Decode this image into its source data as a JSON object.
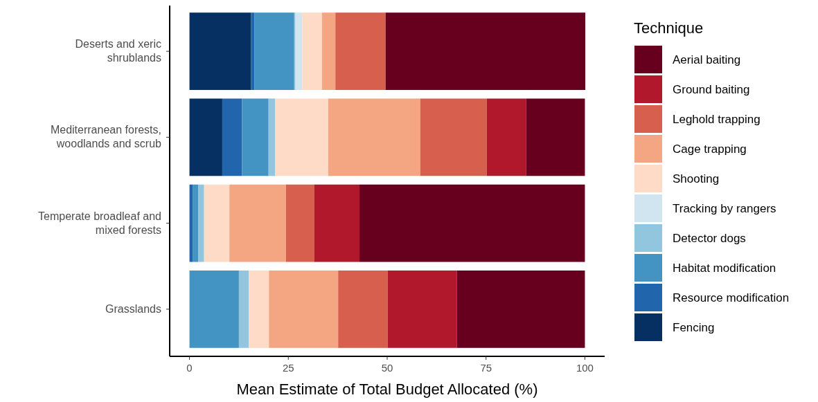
{
  "chart_data": {
    "type": "bar",
    "orientation": "horizontal",
    "stacked": true,
    "xlabel": "Mean Estimate of Total Budget Allocated (%)",
    "legend_title": "Technique",
    "legend": "right",
    "xlim": [
      -5,
      105
    ],
    "xticks": [
      0,
      25,
      50,
      75,
      100
    ],
    "categories": [
      "Deserts and xeric shrublands",
      "Mediterranean forests, woodlands and scrub",
      "Temperate broadleaf and mixed forests",
      "Grasslands"
    ],
    "series": [
      {
        "name": "Fencing",
        "color": "#053061",
        "values": [
          15.6,
          8.3,
          0,
          0
        ]
      },
      {
        "name": "Resource modification",
        "color": "#2166ac",
        "values": [
          0.8,
          5.0,
          0.8,
          0
        ]
      },
      {
        "name": "Habitat modification",
        "color": "#4393c3",
        "values": [
          10.1,
          6.7,
          1.4,
          12.5
        ]
      },
      {
        "name": "Detector dogs",
        "color": "#92c5de",
        "values": [
          0.3,
          1.7,
          1.5,
          2.5
        ]
      },
      {
        "name": "Tracking by rangers",
        "color": "#d1e5f0",
        "values": [
          1.7,
          0,
          0,
          0
        ]
      },
      {
        "name": "Shooting",
        "color": "#fddbc7",
        "values": [
          5.0,
          13.4,
          6.4,
          5.1
        ]
      },
      {
        "name": "Cage trapping",
        "color": "#f4a582",
        "values": [
          3.4,
          23.3,
          14.3,
          17.5
        ]
      },
      {
        "name": "Leghold trapping",
        "color": "#d6604d",
        "values": [
          12.7,
          16.8,
          7.2,
          12.5
        ]
      },
      {
        "name": "Ground baiting",
        "color": "#b2182b",
        "values": [
          0,
          9.9,
          11.4,
          17.5
        ]
      },
      {
        "name": "Aerial baiting",
        "color": "#67001f",
        "values": [
          50.5,
          14.9,
          57.0,
          32.4
        ]
      }
    ]
  }
}
